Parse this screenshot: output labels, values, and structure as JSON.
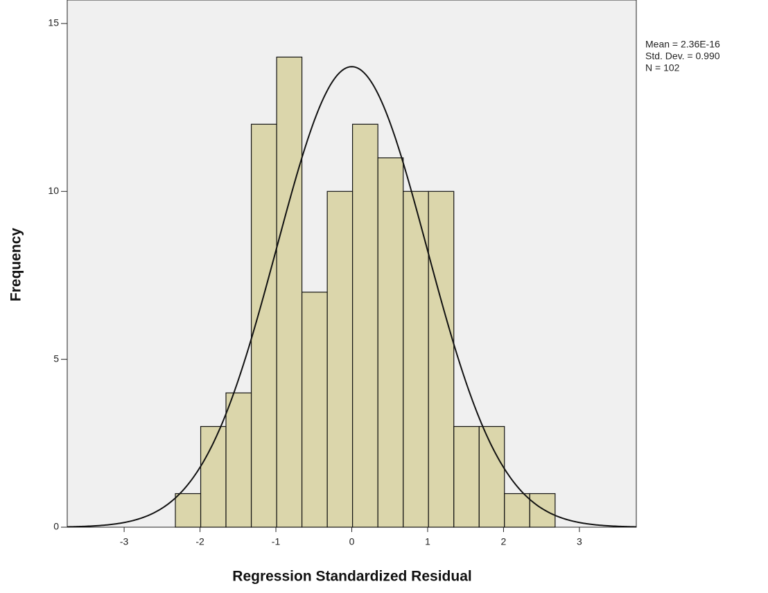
{
  "chart_data": {
    "type": "histogram",
    "xlabel": "Regression Standardized Residual",
    "ylabel": "Frequency",
    "bins": [
      -2.325,
      -1.991,
      -1.658,
      -1.324,
      -0.99,
      -0.657,
      -0.323,
      0.01,
      0.344,
      0.678,
      1.011,
      1.345,
      1.679,
      2.012,
      2.346,
      2.68
    ],
    "values": [
      1,
      3,
      4,
      12,
      14,
      7,
      10,
      12,
      11,
      10,
      10,
      3,
      3,
      1,
      1
    ],
    "color": "#d6d09a",
    "xlim": [
      -3.75,
      3.75
    ],
    "xticks": [
      -3,
      -2,
      -1,
      0,
      1,
      2,
      3
    ],
    "ylim": [
      0,
      15.7
    ],
    "yticks": [
      0,
      5,
      10,
      15
    ],
    "stats": [
      {
        "value": 2.36e-16,
        "label": "Mean = 2.36E-16"
      },
      {
        "value": 0.99,
        "label": "Std. Dev. = 0.990"
      },
      {
        "value": 102,
        "label": "N = 102"
      }
    ]
  }
}
